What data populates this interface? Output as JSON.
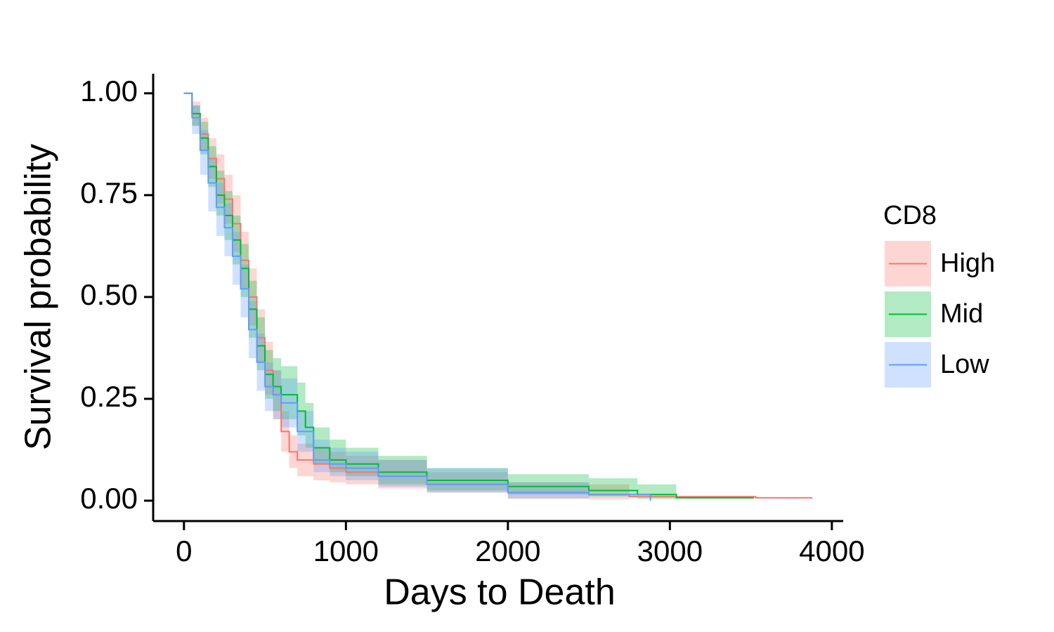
{
  "chart_data": {
    "type": "survival",
    "xlabel": "Days to Death",
    "ylabel": "Survival probability",
    "xlim": [
      -190,
      4070
    ],
    "ylim": [
      -0.05,
      1.048
    ],
    "xticks": [
      0,
      1000,
      2000,
      3000,
      4000
    ],
    "yticks": [
      {
        "value": 0,
        "label": "0.00"
      },
      {
        "value": 0.25,
        "label": "0.25"
      },
      {
        "value": 0.5,
        "label": "0.50"
      },
      {
        "value": 0.75,
        "label": "0.75"
      },
      {
        "value": 1,
        "label": "1.00"
      }
    ],
    "legend_title": "CD8",
    "legend": "right",
    "band_opacity": 0.3,
    "series": [
      {
        "name": "High",
        "color": "#F8766D",
        "x": [
          0,
          50,
          100,
          150,
          200,
          250,
          300,
          350,
          400,
          450,
          500,
          550,
          600,
          650,
          700,
          800,
          900,
          1000,
          1200,
          1500,
          2000,
          2500,
          2750,
          3530,
          3880
        ],
        "values": [
          1,
          0.95,
          0.9,
          0.84,
          0.79,
          0.74,
          0.68,
          0.59,
          0.5,
          0.4,
          0.32,
          0.26,
          0.17,
          0.12,
          0.1,
          0.09,
          0.08,
          0.07,
          0.06,
          0.04,
          0.02,
          0.015,
          0.01,
          0.007,
          0.007
        ],
        "lower": [
          1,
          0.92,
          0.86,
          0.79,
          0.73,
          0.68,
          0.61,
          0.52,
          0.43,
          0.34,
          0.26,
          0.2,
          0.12,
          0.08,
          0.06,
          0.05,
          0.045,
          0.04,
          0.03,
          0.02,
          0.005,
          0.003,
          0.001,
          null,
          null
        ],
        "upper": [
          1,
          0.98,
          0.94,
          0.89,
          0.85,
          0.8,
          0.75,
          0.66,
          0.57,
          0.47,
          0.39,
          0.32,
          0.22,
          0.16,
          0.14,
          0.13,
          0.12,
          0.11,
          0.1,
          0.07,
          0.045,
          0.04,
          0.035,
          null,
          null
        ]
      },
      {
        "name": "Mid",
        "color": "#00BA38",
        "x": [
          0,
          50,
          100,
          150,
          200,
          250,
          300,
          350,
          400,
          450,
          500,
          550,
          600,
          700,
          750,
          800,
          900,
          1000,
          1200,
          1500,
          2000,
          2500,
          2800,
          3040,
          3520
        ],
        "values": [
          1,
          0.95,
          0.89,
          0.82,
          0.75,
          0.7,
          0.64,
          0.57,
          0.47,
          0.38,
          0.31,
          0.28,
          0.26,
          0.22,
          0.18,
          0.13,
          0.1,
          0.09,
          0.07,
          0.05,
          0.035,
          0.025,
          0.015,
          0.007,
          0.007
        ],
        "lower": [
          1,
          0.92,
          0.85,
          0.77,
          0.7,
          0.64,
          0.58,
          0.5,
          0.4,
          0.32,
          0.25,
          0.22,
          0.2,
          0.16,
          0.13,
          0.09,
          0.07,
          0.06,
          0.04,
          0.025,
          0.015,
          0.01,
          0.004,
          0.001,
          null
        ],
        "upper": [
          1,
          0.97,
          0.93,
          0.87,
          0.81,
          0.76,
          0.7,
          0.63,
          0.54,
          0.45,
          0.37,
          0.35,
          0.33,
          0.29,
          0.24,
          0.18,
          0.15,
          0.13,
          0.11,
          0.08,
          0.065,
          0.055,
          0.04,
          0.04,
          null
        ]
      },
      {
        "name": "Low",
        "color": "#619CFF",
        "x": [
          0,
          50,
          100,
          150,
          200,
          250,
          300,
          350,
          400,
          450,
          500,
          550,
          600,
          700,
          800,
          900,
          1000,
          1200,
          1500,
          2000,
          2500,
          2880
        ],
        "values": [
          1,
          0.94,
          0.86,
          0.78,
          0.72,
          0.67,
          0.6,
          0.52,
          0.42,
          0.34,
          0.28,
          0.26,
          0.24,
          0.17,
          0.1,
          0.09,
          0.08,
          0.06,
          0.04,
          0.02,
          0.015,
          0
        ],
        "lower": [
          1,
          0.9,
          0.8,
          0.71,
          0.65,
          0.6,
          0.53,
          0.45,
          0.35,
          0.27,
          0.22,
          0.2,
          0.18,
          0.12,
          0.07,
          0.06,
          0.05,
          0.035,
          0.02,
          0.005,
          0.002,
          null
        ],
        "upper": [
          1,
          0.97,
          0.91,
          0.84,
          0.78,
          0.73,
          0.66,
          0.58,
          0.49,
          0.41,
          0.34,
          0.32,
          0.3,
          0.22,
          0.15,
          0.13,
          0.12,
          0.1,
          0.08,
          0.045,
          0.04,
          null
        ]
      }
    ]
  }
}
